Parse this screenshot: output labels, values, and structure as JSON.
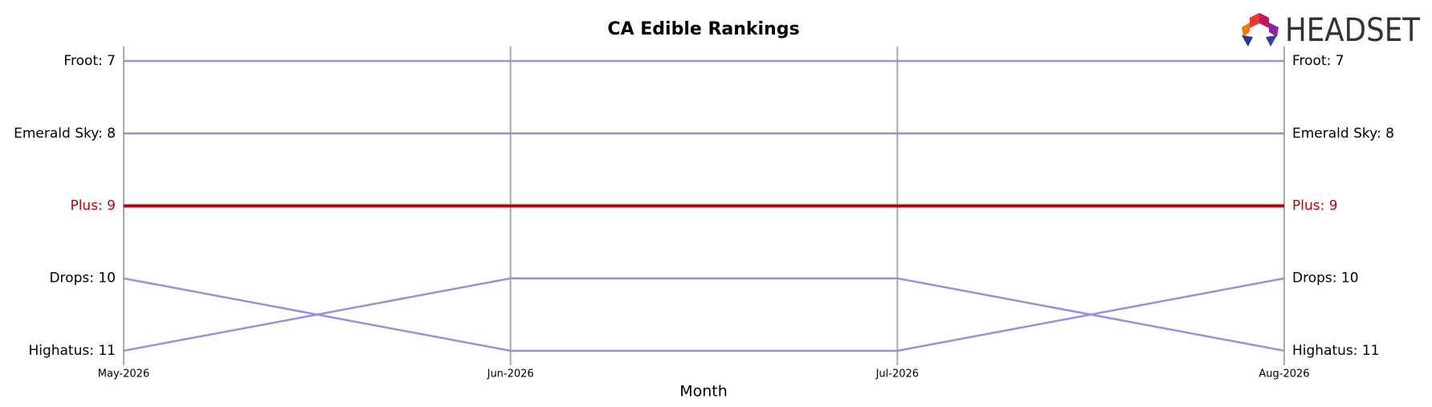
{
  "logo": {
    "text": "HEADSET"
  },
  "chart_data": {
    "type": "bump",
    "title": "CA Edible Rankings",
    "xlabel": "Month",
    "categories": [
      "May-2026",
      "Jun-2026",
      "Jul-2026",
      "Aug-2026"
    ],
    "ylim": [
      11.2,
      6.8
    ],
    "grid": true,
    "series": [
      {
        "name": "Froot",
        "color": "#9a8fdc",
        "values": [
          7,
          7,
          7,
          7
        ],
        "value_labels": [
          "Froot: 7",
          null,
          null,
          "Froot: 7"
        ]
      },
      {
        "name": "Emerald Sky",
        "color": "#9a8fdc",
        "values": [
          8,
          8,
          8,
          8
        ],
        "value_labels": [
          "Emerald Sky: 8",
          null,
          null,
          "Emerald Sky: 8"
        ]
      },
      {
        "name": "Plus",
        "color": "#c00000",
        "highlight": true,
        "values": [
          9,
          9,
          9,
          9
        ],
        "value_labels": [
          "Plus: 9",
          null,
          null,
          "Plus: 9"
        ]
      },
      {
        "name": "Drops",
        "color": "#9a8fdc",
        "values": [
          10,
          11,
          11,
          10
        ],
        "value_labels": [
          "Drops: 10",
          null,
          null,
          "Drops: 10"
        ]
      },
      {
        "name": "Highatus",
        "color": "#9a8fdc",
        "values": [
          11,
          10,
          10,
          11
        ],
        "value_labels": [
          "Highatus: 11",
          null,
          null,
          "Highatus: 11"
        ]
      }
    ]
  }
}
